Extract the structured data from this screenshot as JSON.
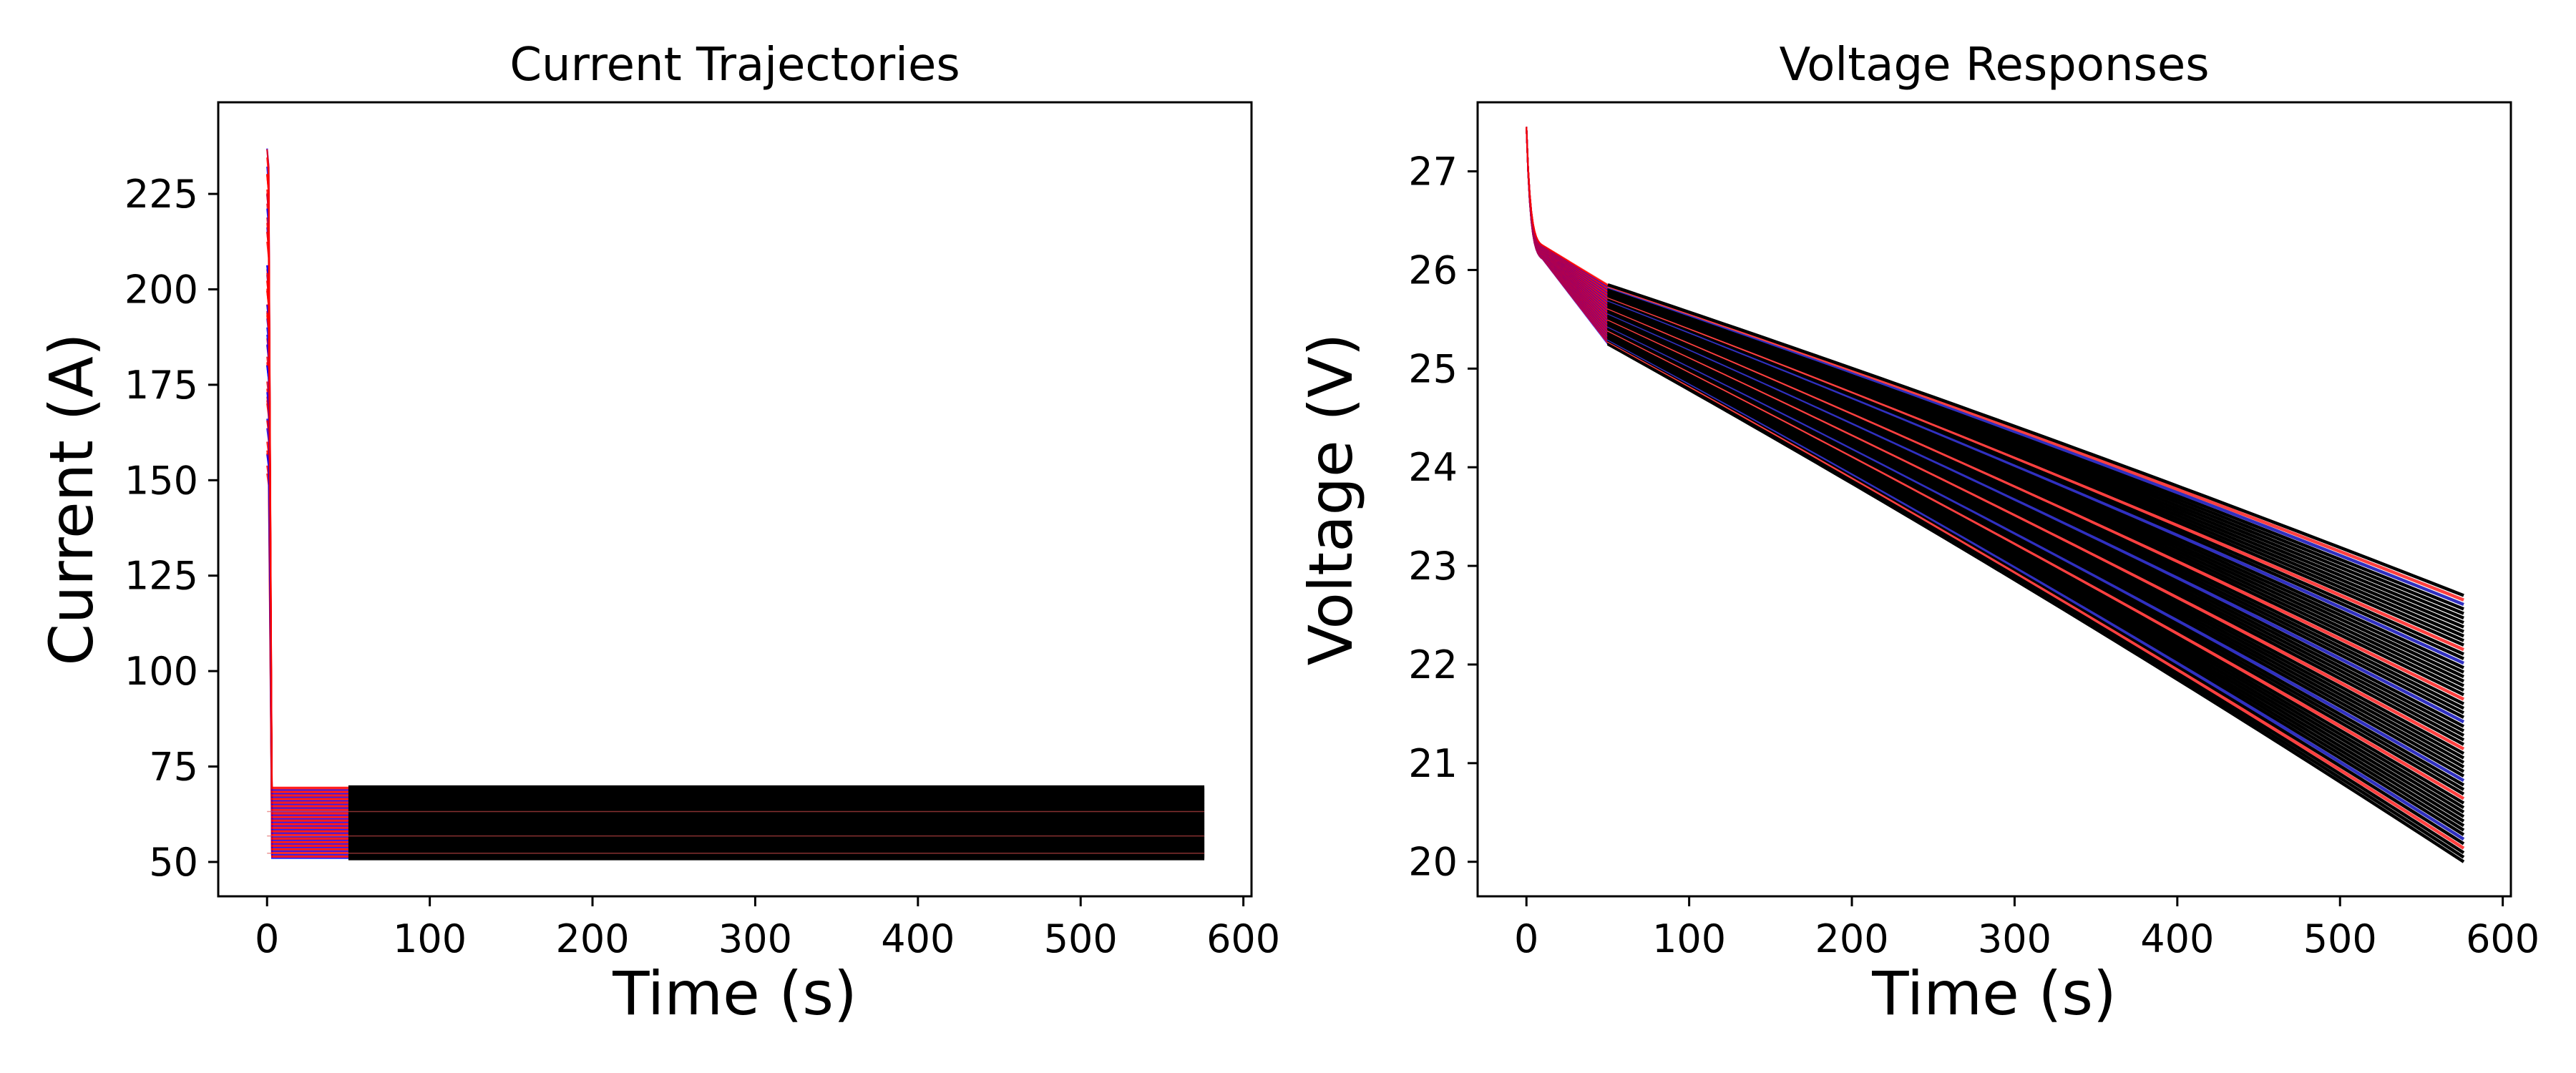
{
  "chart_data": [
    {
      "type": "line",
      "title": "Current Trajectories",
      "xlabel": "Time (s)",
      "ylabel": "Current (A)",
      "xlim": [
        -30,
        605
      ],
      "ylim": [
        41,
        249
      ],
      "xticks": [
        0,
        100,
        200,
        300,
        400,
        500,
        600
      ],
      "yticks": [
        50,
        75,
        100,
        125,
        150,
        175,
        200,
        225
      ],
      "grid": false,
      "legend": "none",
      "colors": {
        "early_red": "#ff0000",
        "early_blue": "#0000ff",
        "late": "#000000"
      },
      "description_series": {
        "count": 60,
        "peak_range_A": [
          150,
          238
        ],
        "peak_time_s": 0,
        "steady_range_A": [
          51,
          69.5
        ],
        "switch_time_s": 3,
        "color_change_time_s": 50,
        "end_time_s": 576
      }
    },
    {
      "type": "line",
      "title": "Voltage Responses",
      "xlabel": "Time (s)",
      "ylabel": "Voltage (V)",
      "xlim": [
        -30,
        605
      ],
      "ylim": [
        19.65,
        27.7
      ],
      "xticks": [
        0,
        100,
        200,
        300,
        400,
        500,
        600
      ],
      "yticks": [
        20,
        21,
        22,
        23,
        24,
        25,
        26,
        27
      ],
      "grid": false,
      "legend": "none",
      "colors": {
        "early_red": "#ff0000",
        "early_blue": "#0000ff",
        "late": "#000000"
      },
      "description_series": {
        "count": 60,
        "start_V": 27.45,
        "knee_V_at_10s": [
          26.05,
          26.25
        ],
        "V_at_50s": [
          25.25,
          25.85
        ],
        "end_V_at_576s": [
          20.0,
          22.7
        ],
        "color_change_time_s": 50,
        "end_time_s": 576
      }
    }
  ]
}
